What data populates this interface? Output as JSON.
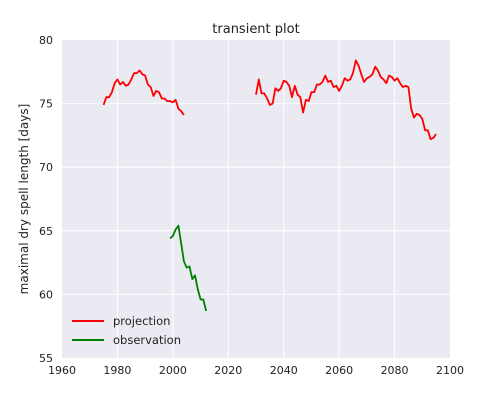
{
  "chart_data": {
    "type": "line",
    "title": "transient plot",
    "xlabel": "",
    "ylabel": "maximal dry spell length [days]",
    "xlim": [
      1960,
      2100
    ],
    "ylim": [
      55,
      80
    ],
    "xticks": [
      1960,
      1980,
      2000,
      2020,
      2040,
      2060,
      2080,
      2100
    ],
    "yticks": [
      55,
      60,
      65,
      70,
      75,
      80
    ],
    "grid": true,
    "legend": "lower-left",
    "series": [
      {
        "name": "projection",
        "color": "#ff0000",
        "segments": [
          [
            [
              1975,
              74.9
            ],
            [
              1976,
              75.5
            ],
            [
              1977,
              75.5
            ],
            [
              1978,
              75.9
            ],
            [
              1979,
              76.6
            ],
            [
              1980,
              76.9
            ],
            [
              1981,
              76.5
            ],
            [
              1982,
              76.7
            ],
            [
              1983,
              76.4
            ],
            [
              1984,
              76.5
            ],
            [
              1985,
              76.9
            ],
            [
              1986,
              77.4
            ],
            [
              1987,
              77.4
            ],
            [
              1988,
              77.6
            ],
            [
              1989,
              77.3
            ],
            [
              1990,
              77.2
            ],
            [
              1991,
              76.5
            ],
            [
              1992,
              76.3
            ],
            [
              1993,
              75.6
            ],
            [
              1994,
              76.0
            ],
            [
              1995,
              75.9
            ],
            [
              1996,
              75.4
            ],
            [
              1997,
              75.4
            ],
            [
              1998,
              75.2
            ],
            [
              1999,
              75.2
            ],
            [
              2000,
              75.1
            ],
            [
              2001,
              75.3
            ],
            [
              2002,
              74.6
            ],
            [
              2003,
              74.4
            ],
            [
              2004,
              74.1
            ]
          ],
          [
            [
              2030,
              75.7
            ],
            [
              2031,
              76.9
            ],
            [
              2032,
              75.8
            ],
            [
              2033,
              75.8
            ],
            [
              2034,
              75.4
            ],
            [
              2035,
              74.9
            ],
            [
              2036,
              75.0
            ],
            [
              2037,
              76.2
            ],
            [
              2038,
              76.0
            ],
            [
              2039,
              76.2
            ],
            [
              2040,
              76.8
            ],
            [
              2041,
              76.7
            ],
            [
              2042,
              76.4
            ],
            [
              2043,
              75.5
            ],
            [
              2044,
              76.4
            ],
            [
              2045,
              75.7
            ],
            [
              2046,
              75.5
            ],
            [
              2047,
              74.3
            ],
            [
              2048,
              75.3
            ],
            [
              2049,
              75.2
            ],
            [
              2050,
              75.9
            ],
            [
              2051,
              75.9
            ],
            [
              2052,
              76.5
            ],
            [
              2053,
              76.5
            ],
            [
              2054,
              76.7
            ],
            [
              2055,
              77.2
            ],
            [
              2056,
              76.7
            ],
            [
              2057,
              76.8
            ],
            [
              2058,
              76.3
            ],
            [
              2059,
              76.4
            ],
            [
              2060,
              76.0
            ],
            [
              2061,
              76.4
            ],
            [
              2062,
              77.0
            ],
            [
              2063,
              76.8
            ],
            [
              2064,
              76.9
            ],
            [
              2065,
              77.4
            ],
            [
              2066,
              78.4
            ],
            [
              2067,
              78.0
            ],
            [
              2068,
              77.3
            ],
            [
              2069,
              76.7
            ],
            [
              2070,
              77.0
            ],
            [
              2071,
              77.1
            ],
            [
              2072,
              77.3
            ],
            [
              2073,
              77.9
            ],
            [
              2074,
              77.6
            ],
            [
              2075,
              77.1
            ],
            [
              2076,
              76.9
            ],
            [
              2077,
              76.6
            ],
            [
              2078,
              77.2
            ],
            [
              2079,
              77.1
            ],
            [
              2080,
              76.8
            ],
            [
              2081,
              77.0
            ],
            [
              2082,
              76.6
            ],
            [
              2083,
              76.3
            ],
            [
              2084,
              76.4
            ],
            [
              2085,
              76.3
            ],
            [
              2086,
              74.6
            ],
            [
              2087,
              73.9
            ],
            [
              2088,
              74.2
            ],
            [
              2089,
              74.1
            ],
            [
              2090,
              73.8
            ],
            [
              2091,
              72.9
            ],
            [
              2092,
              72.9
            ],
            [
              2093,
              72.2
            ],
            [
              2094,
              72.3
            ],
            [
              2095,
              72.6
            ]
          ]
        ]
      },
      {
        "name": "observation",
        "color": "#008000",
        "segments": [
          [
            [
              1999,
              64.4
            ],
            [
              2000,
              64.6
            ],
            [
              2001,
              65.1
            ],
            [
              2002,
              65.4
            ],
            [
              2003,
              64.0
            ],
            [
              2004,
              62.6
            ],
            [
              2005,
              62.1
            ],
            [
              2006,
              62.2
            ],
            [
              2007,
              61.2
            ],
            [
              2008,
              61.5
            ],
            [
              2009,
              60.4
            ],
            [
              2010,
              59.6
            ],
            [
              2011,
              59.6
            ],
            [
              2012,
              58.7
            ]
          ]
        ]
      }
    ]
  }
}
